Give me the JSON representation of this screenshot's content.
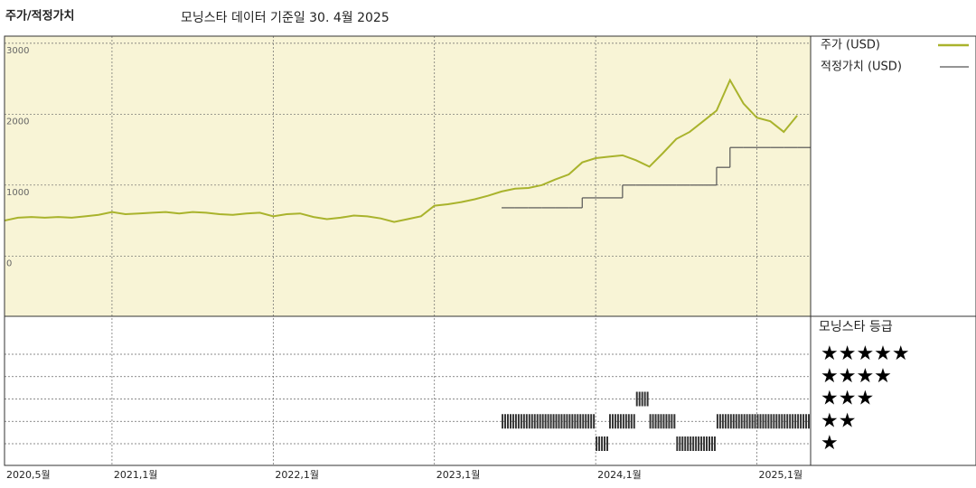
{
  "chart_data": {
    "type": "line",
    "title": "주가/적정가치",
    "subtitle": "모닝스타 데이터 기준일 30. 4월 2025",
    "x": [
      "2020-05",
      "2020-06",
      "2020-07",
      "2020-08",
      "2020-09",
      "2020-10",
      "2020-11",
      "2020-12",
      "2021-01",
      "2021-02",
      "2021-03",
      "2021-04",
      "2021-05",
      "2021-06",
      "2021-07",
      "2021-08",
      "2021-09",
      "2021-10",
      "2021-11",
      "2021-12",
      "2022-01",
      "2022-02",
      "2022-03",
      "2022-04",
      "2022-05",
      "2022-06",
      "2022-07",
      "2022-08",
      "2022-09",
      "2022-10",
      "2022-11",
      "2022-12",
      "2023-01",
      "2023-02",
      "2023-03",
      "2023-04",
      "2023-05",
      "2023-06",
      "2023-07",
      "2023-08",
      "2023-09",
      "2023-10",
      "2023-11",
      "2023-12",
      "2024-01",
      "2024-02",
      "2024-03",
      "2024-04",
      "2024-05",
      "2024-06",
      "2024-07",
      "2024-08",
      "2024-09",
      "2024-10",
      "2024-11",
      "2024-12",
      "2025-01",
      "2025-02",
      "2025-03",
      "2025-04"
    ],
    "series": [
      {
        "name": "주가 (USD)",
        "color": "#a9b32c",
        "values": [
          500,
          540,
          550,
          540,
          550,
          540,
          560,
          580,
          620,
          590,
          600,
          610,
          620,
          600,
          620,
          610,
          590,
          580,
          600,
          610,
          560,
          590,
          600,
          550,
          520,
          540,
          570,
          560,
          530,
          480,
          520,
          560,
          710,
          730,
          760,
          800,
          850,
          910,
          950,
          960,
          1000,
          1080,
          1150,
          1320,
          1380,
          1400,
          1420,
          1350,
          1260,
          1450,
          1650,
          1750,
          1900,
          2050,
          2480,
          2150,
          1950,
          1900,
          1750,
          1980
        ]
      },
      {
        "name": "적정가치 (USD)",
        "color": "#555555",
        "values": [
          null,
          null,
          null,
          null,
          null,
          null,
          null,
          null,
          null,
          null,
          null,
          null,
          null,
          null,
          null,
          null,
          null,
          null,
          null,
          null,
          null,
          null,
          null,
          null,
          null,
          null,
          null,
          null,
          null,
          null,
          null,
          null,
          null,
          null,
          null,
          null,
          null,
          680,
          680,
          680,
          680,
          680,
          680,
          820,
          820,
          820,
          1000,
          1000,
          1000,
          1000,
          1000,
          1000,
          1000,
          1250,
          1530,
          1530,
          1530,
          1530,
          1530,
          1530
        ]
      }
    ],
    "xlim": [
      "2020-05",
      "2025-05"
    ],
    "xticks": [
      {
        "value": "2020-05",
        "label": "2020,5월"
      },
      {
        "value": "2021-01",
        "label": "2021,1월"
      },
      {
        "value": "2022-01",
        "label": "2022,1월"
      },
      {
        "value": "2023-01",
        "label": "2023,1월"
      },
      {
        "value": "2024-01",
        "label": "2024,1월"
      },
      {
        "value": "2025-01",
        "label": "2025,1월"
      }
    ],
    "ylim": [
      -850,
      3100
    ],
    "yticks": [
      0,
      1000,
      2000,
      3000
    ],
    "grid": true,
    "rating_title": "모닝스타 등급",
    "rating_ticks": [
      {
        "value": 5,
        "label": "★★★★★"
      },
      {
        "value": 4,
        "label": "★★★★"
      },
      {
        "value": 3,
        "label": "★★★"
      },
      {
        "value": 2,
        "label": "★★"
      },
      {
        "value": 1,
        "label": "★"
      }
    ],
    "rating_x": [
      "2023-06",
      "2023-07",
      "2023-08",
      "2023-09",
      "2023-10",
      "2023-11",
      "2023-12",
      "2024-01",
      "2024-02",
      "2024-03",
      "2024-04",
      "2024-05",
      "2024-06",
      "2024-07",
      "2024-08",
      "2024-09",
      "2024-10",
      "2024-11",
      "2024-12",
      "2025-01",
      "2025-02",
      "2025-03",
      "2025-04"
    ],
    "ratings": [
      2,
      2,
      2,
      2,
      2,
      2,
      2,
      1,
      2,
      2,
      3,
      2,
      2,
      1,
      1,
      1,
      2,
      2,
      2,
      2,
      2,
      2,
      2
    ],
    "rating_color": "#333333"
  }
}
